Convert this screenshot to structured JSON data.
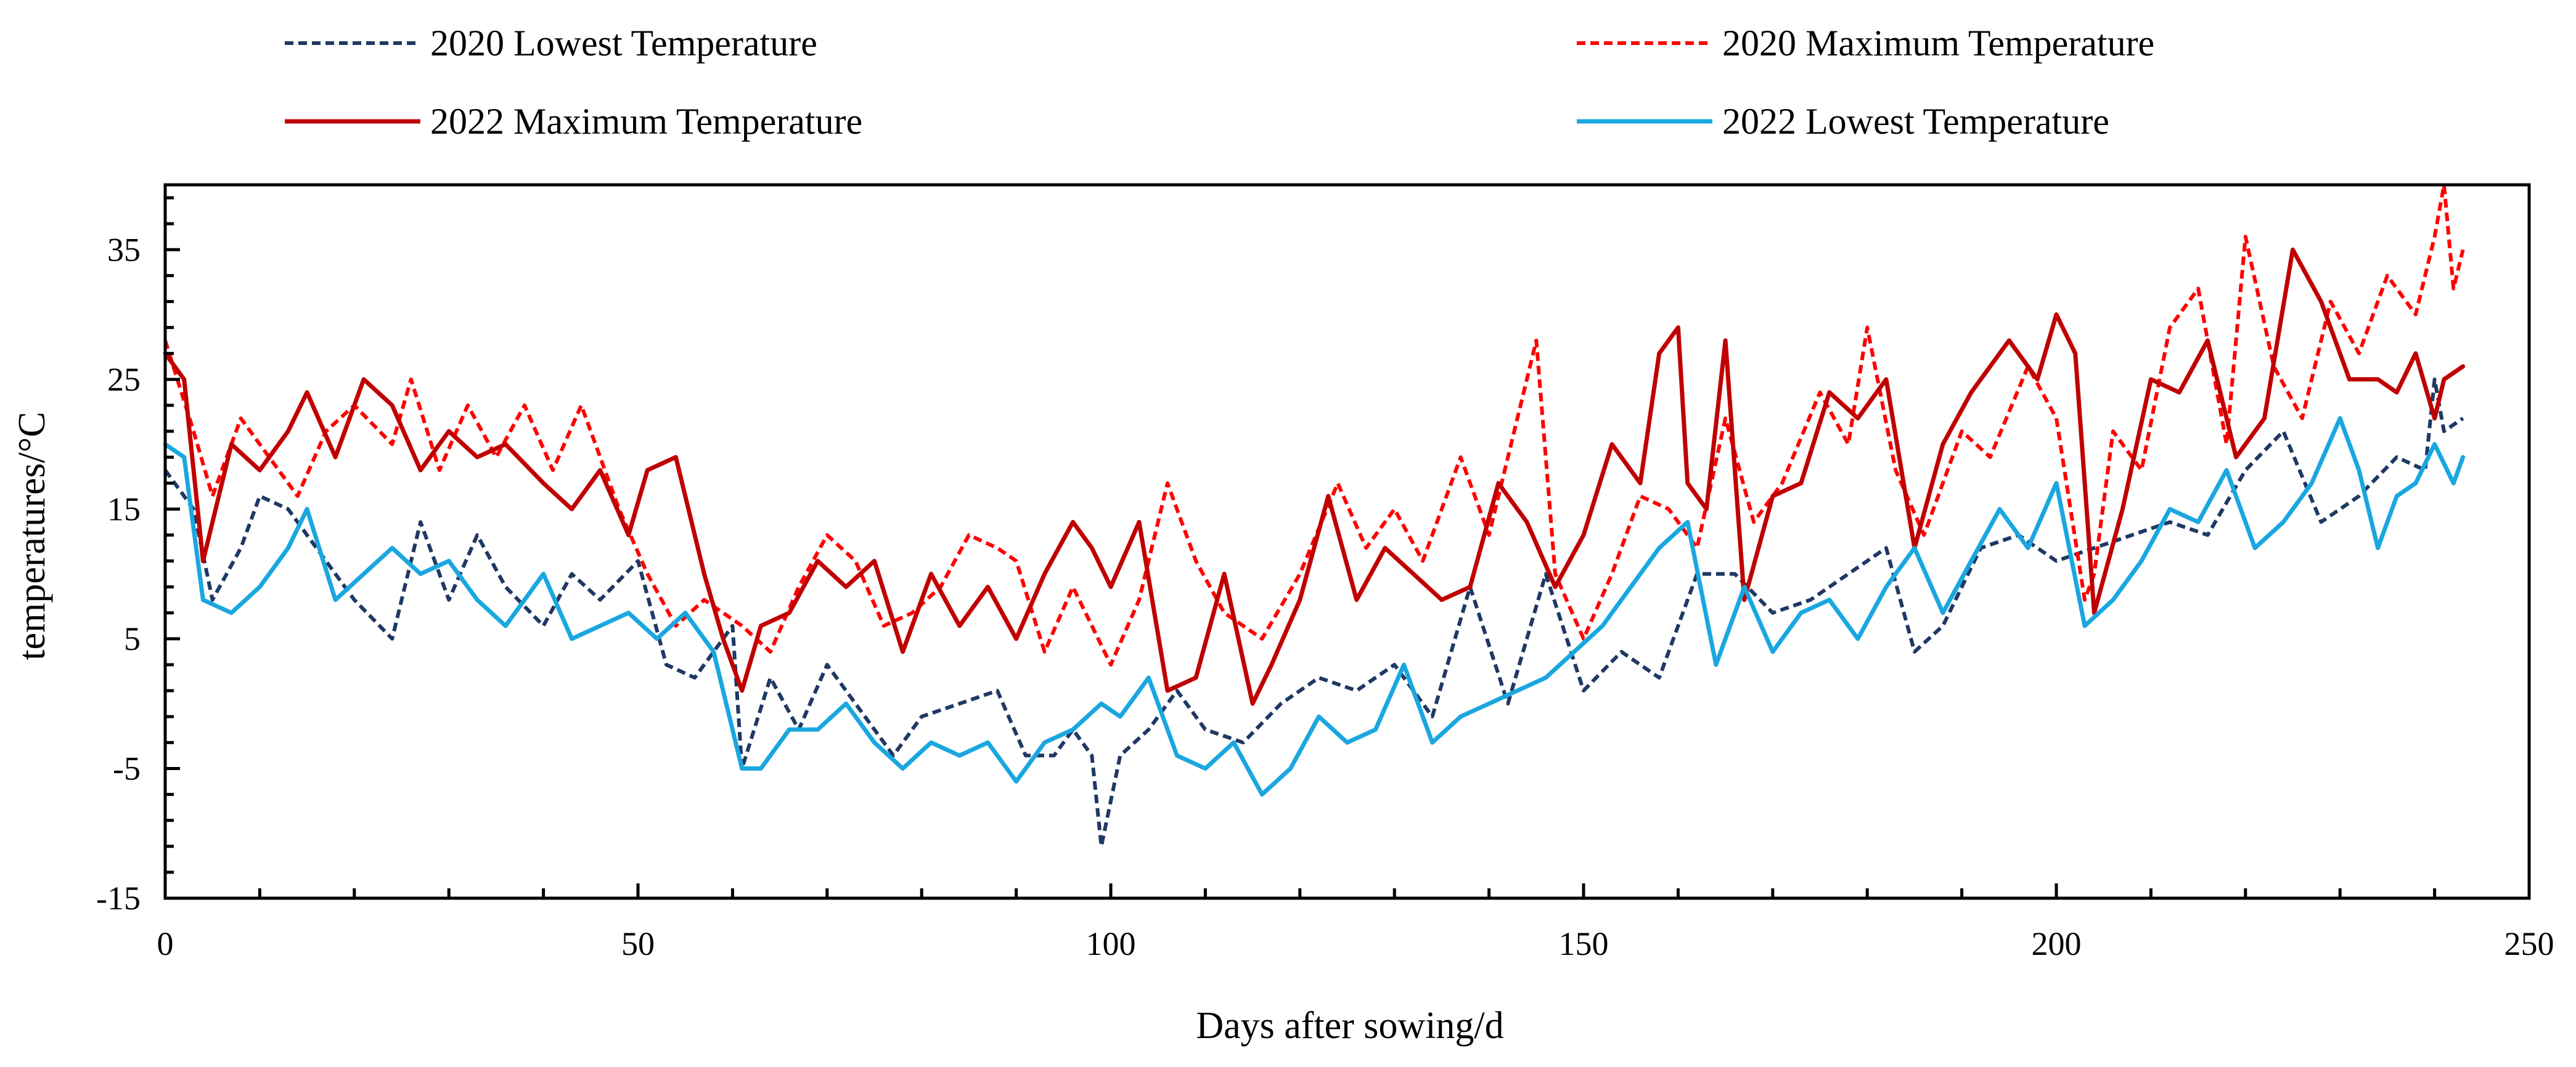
{
  "chart_data": {
    "type": "line",
    "xlabel": "Days after sowing/d",
    "ylabel": "temperatures/°C",
    "xlim": [
      0,
      250
    ],
    "ylim": [
      -15,
      40
    ],
    "x_ticks": [
      "0",
      "50",
      "100",
      "150",
      "200",
      "250"
    ],
    "y_ticks": [
      "-15",
      "-5",
      "5",
      "15",
      "25",
      "35"
    ],
    "legend_position": "top",
    "series": [
      {
        "name": "2020 Lowest Temperature",
        "color": "#1f3864",
        "dash": "dashed",
        "x": [
          0,
          3,
          5,
          8,
          10,
          13,
          16,
          20,
          24,
          27,
          30,
          33,
          36,
          40,
          43,
          46,
          50,
          53,
          56,
          60,
          61,
          64,
          67,
          70,
          74,
          77,
          80,
          84,
          88,
          91,
          94,
          96,
          98,
          99,
          101,
          104,
          107,
          110,
          114,
          118,
          122,
          126,
          130,
          134,
          138,
          142,
          146,
          150,
          154,
          158,
          162,
          166,
          170,
          174,
          178,
          182,
          185,
          188,
          192,
          196,
          200,
          204,
          208,
          212,
          216,
          220,
          224,
          228,
          232,
          236,
          239,
          240,
          241,
          243
        ],
        "values": [
          18,
          15,
          8,
          12,
          16,
          15,
          12,
          8,
          5,
          14,
          8,
          13,
          9,
          6,
          10,
          8,
          11,
          3,
          2,
          6,
          -5,
          2,
          -2,
          3,
          -1,
          -4,
          -1,
          0,
          1,
          -4,
          -4,
          -2,
          -4,
          -11,
          -4,
          -2,
          1,
          -2,
          -3,
          0,
          2,
          1,
          3,
          -1,
          9,
          0,
          10,
          1,
          4,
          2,
          10,
          10,
          7,
          8,
          10,
          12,
          4,
          6,
          12,
          13,
          11,
          12,
          13,
          14,
          13,
          18,
          21,
          14,
          16,
          19,
          18,
          25,
          21,
          22
        ]
      },
      {
        "name": "2020 Maximum Temperature",
        "color": "#ff0000",
        "dash": "dashed",
        "x": [
          0,
          3,
          5,
          8,
          11,
          14,
          17,
          20,
          24,
          26,
          29,
          32,
          35,
          38,
          41,
          44,
          48,
          51,
          54,
          57,
          61,
          64,
          67,
          70,
          73,
          76,
          79,
          82,
          85,
          88,
          90,
          93,
          96,
          100,
          103,
          106,
          109,
          112,
          116,
          120,
          124,
          127,
          130,
          133,
          137,
          140,
          143,
          145,
          147,
          150,
          153,
          156,
          159,
          162,
          165,
          168,
          171,
          175,
          178,
          180,
          183,
          186,
          190,
          193,
          197,
          200,
          203,
          204,
          206,
          209,
          212,
          215,
          218,
          220,
          223,
          226,
          229,
          232,
          235,
          238,
          240,
          241,
          242,
          243
        ],
        "values": [
          28,
          21,
          16,
          22,
          19,
          16,
          21,
          23,
          20,
          25,
          18,
          23,
          19,
          23,
          18,
          23,
          15,
          10,
          6,
          8,
          6,
          4,
          9,
          13,
          11,
          6,
          7,
          9,
          13,
          12,
          11,
          4,
          9,
          3,
          8,
          17,
          11,
          7,
          5,
          10,
          17,
          12,
          15,
          11,
          19,
          13,
          22,
          28,
          10,
          5,
          10,
          16,
          15,
          12,
          22,
          14,
          17,
          24,
          20,
          29,
          18,
          13,
          21,
          19,
          26,
          22,
          8,
          10,
          21,
          18,
          29,
          32,
          20,
          36,
          26,
          22,
          31,
          27,
          33,
          30,
          36,
          40,
          32,
          35
        ]
      },
      {
        "name": "2022 Maximum Temperature",
        "color": "#c00000",
        "dash": "solid",
        "x": [
          0,
          2,
          4,
          7,
          10,
          13,
          15,
          18,
          21,
          24,
          27,
          30,
          33,
          36,
          40,
          43,
          46,
          49,
          51,
          54,
          57,
          59,
          61,
          63,
          66,
          69,
          72,
          75,
          78,
          81,
          84,
          87,
          90,
          93,
          96,
          98,
          100,
          103,
          106,
          109,
          112,
          115,
          117,
          120,
          123,
          126,
          129,
          132,
          135,
          138,
          141,
          144,
          147,
          150,
          153,
          156,
          158,
          160,
          161,
          163,
          165,
          167,
          170,
          173,
          176,
          179,
          182,
          185,
          188,
          191,
          195,
          198,
          200,
          202,
          204,
          207,
          210,
          213,
          216,
          219,
          222,
          225,
          228,
          231,
          234,
          236,
          238,
          240,
          241,
          243
        ],
        "values": [
          27,
          25,
          11,
          20,
          18,
          21,
          24,
          19,
          25,
          23,
          18,
          21,
          19,
          20,
          17,
          15,
          18,
          13,
          18,
          19,
          10,
          5,
          1,
          6,
          7,
          11,
          9,
          11,
          4,
          10,
          6,
          9,
          5,
          10,
          14,
          12,
          9,
          14,
          1,
          2,
          10,
          0,
          3,
          8,
          16,
          8,
          12,
          10,
          8,
          9,
          17,
          14,
          9,
          13,
          20,
          17,
          27,
          29,
          17,
          15,
          28,
          8,
          16,
          17,
          24,
          22,
          25,
          12,
          20,
          24,
          28,
          25,
          30,
          27,
          7,
          15,
          25,
          24,
          28,
          19,
          22,
          35,
          31,
          25,
          25,
          24,
          27,
          22,
          25,
          26
        ]
      },
      {
        "name": "2022 Lowest Temperature",
        "color": "#1aa7e0",
        "dash": "solid",
        "x": [
          0,
          2,
          4,
          7,
          10,
          13,
          15,
          18,
          21,
          24,
          27,
          30,
          33,
          36,
          40,
          43,
          46,
          49,
          52,
          55,
          58,
          61,
          63,
          66,
          69,
          72,
          75,
          78,
          81,
          84,
          87,
          90,
          93,
          96,
          99,
          101,
          104,
          107,
          110,
          113,
          116,
          119,
          122,
          125,
          128,
          131,
          134,
          137,
          140,
          143,
          146,
          149,
          152,
          155,
          158,
          161,
          164,
          167,
          170,
          173,
          176,
          179,
          182,
          185,
          188,
          191,
          194,
          197,
          200,
          203,
          206,
          209,
          212,
          215,
          218,
          221,
          224,
          227,
          230,
          232,
          234,
          236,
          238,
          240,
          242,
          243
        ],
        "values": [
          20,
          19,
          8,
          7,
          9,
          12,
          15,
          8,
          10,
          12,
          10,
          11,
          8,
          6,
          10,
          5,
          6,
          7,
          5,
          7,
          4,
          -5,
          -5,
          -2,
          -2,
          0,
          -3,
          -5,
          -3,
          -4,
          -3,
          -6,
          -3,
          -2,
          0,
          -1,
          2,
          -4,
          -5,
          -3,
          -7,
          -5,
          -1,
          -3,
          -2,
          3,
          -3,
          -1,
          0,
          1,
          2,
          4,
          6,
          9,
          12,
          14,
          3,
          9,
          4,
          7,
          8,
          5,
          9,
          12,
          7,
          11,
          15,
          12,
          17,
          6,
          8,
          11,
          15,
          14,
          18,
          12,
          14,
          17,
          22,
          18,
          12,
          16,
          17,
          20,
          17,
          19
        ]
      }
    ]
  }
}
